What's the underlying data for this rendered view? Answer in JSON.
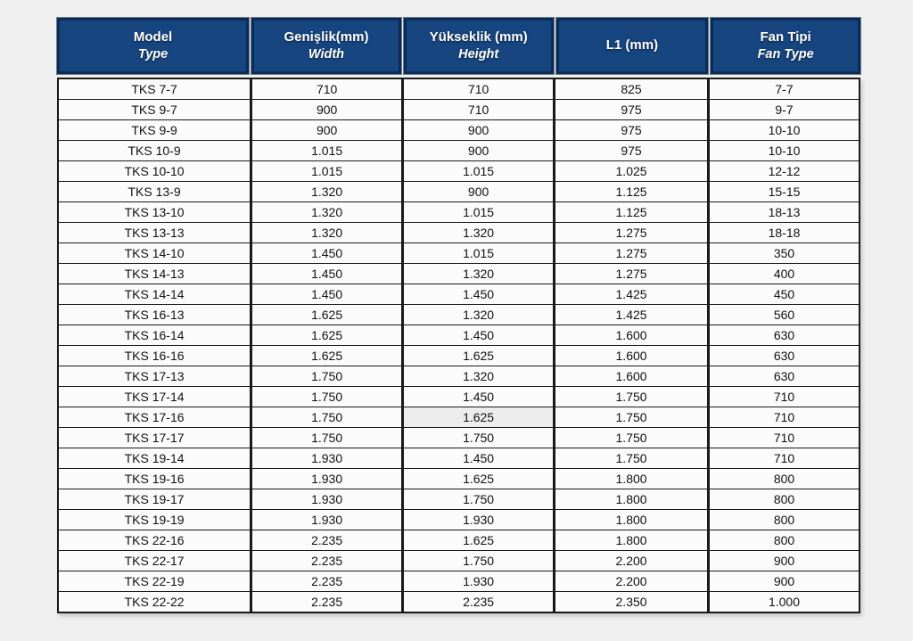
{
  "page": {
    "background": "#efefef"
  },
  "table": {
    "columns": [
      {
        "tr": "Model",
        "en": "Type"
      },
      {
        "tr": "Genişlik(mm)",
        "en": "Width"
      },
      {
        "tr": "Yükseklik (mm)",
        "en": "Height"
      },
      {
        "tr": "L1 (mm)",
        "en": ""
      },
      {
        "tr": "Fan Tipi",
        "en": "Fan Type"
      }
    ],
    "rows": [
      [
        "TKS 7-7",
        "710",
        "710",
        "825",
        "7-7"
      ],
      [
        "TKS 9-7",
        "900",
        "710",
        "975",
        "9-7"
      ],
      [
        "TKS 9-9",
        "900",
        "900",
        "975",
        "10-10"
      ],
      [
        "TKS 10-9",
        "1.015",
        "900",
        "975",
        "10-10"
      ],
      [
        "TKS 10-10",
        "1.015",
        "1.015",
        "1.025",
        "12-12"
      ],
      [
        "TKS 13-9",
        "1.320",
        "900",
        "1.125",
        "15-15"
      ],
      [
        "TKS 13-10",
        "1.320",
        "1.015",
        "1.125",
        "18-13"
      ],
      [
        "TKS 13-13",
        "1.320",
        "1.320",
        "1.275",
        "18-18"
      ],
      [
        "TKS 14-10",
        "1.450",
        "1.015",
        "1.275",
        "350"
      ],
      [
        "TKS 14-13",
        "1.450",
        "1.320",
        "1.275",
        "400"
      ],
      [
        "TKS 14-14",
        "1.450",
        "1.450",
        "1.425",
        "450"
      ],
      [
        "TKS 16-13",
        "1.625",
        "1.320",
        "1.425",
        "560"
      ],
      [
        "TKS 16-14",
        "1.625",
        "1.450",
        "1.600",
        "630"
      ],
      [
        "TKS 16-16",
        "1.625",
        "1.625",
        "1.600",
        "630"
      ],
      [
        "TKS 17-13",
        "1.750",
        "1.320",
        "1.600",
        "630"
      ],
      [
        "TKS 17-14",
        "1.750",
        "1.450",
        "1.750",
        "710"
      ],
      [
        "TKS 17-16",
        "1.750",
        "1.625",
        "1.750",
        "710"
      ],
      [
        "TKS 17-17",
        "1.750",
        "1.750",
        "1.750",
        "710"
      ],
      [
        "TKS 19-14",
        "1.930",
        "1.450",
        "1.750",
        "710"
      ],
      [
        "TKS 19-16",
        "1.930",
        "1.625",
        "1.800",
        "800"
      ],
      [
        "TKS 19-17",
        "1.930",
        "1.750",
        "1.800",
        "800"
      ],
      [
        "TKS 19-19",
        "1.930",
        "1.930",
        "1.800",
        "800"
      ],
      [
        "TKS 22-16",
        "2.235",
        "1.625",
        "1.800",
        "800"
      ],
      [
        "TKS 22-17",
        "2.235",
        "1.750",
        "2.200",
        "900"
      ],
      [
        "TKS 22-19",
        "2.235",
        "1.930",
        "2.200",
        "900"
      ],
      [
        "TKS 22-22",
        "2.235",
        "2.235",
        "2.350",
        "1.000"
      ]
    ],
    "highlight_cell": {
      "row_index": 16,
      "col_index": 2
    },
    "colors": {
      "header_bg": "#17457f",
      "header_border": "#0a2c58",
      "header_text": "#ffffff",
      "body_bg": "#fbfbfb",
      "grid_line": "#1a1a1a",
      "highlight_bg": "#ececec",
      "page_bg": "#efefef"
    }
  }
}
